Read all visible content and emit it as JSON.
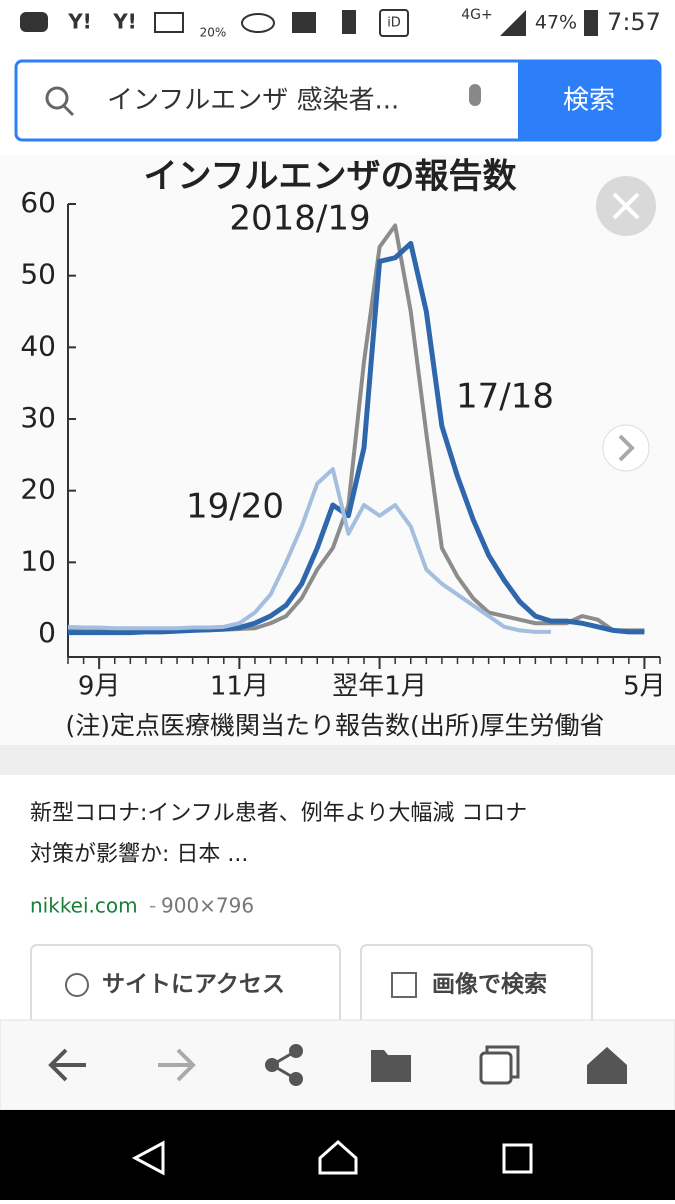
{
  "status_bar": {
    "icons": [
      "Y!",
      "Y!",
      "iD"
    ],
    "weather": "20%",
    "network": "4G+",
    "battery": "47%",
    "time": "7:57"
  },
  "search": {
    "query": "インフルエンザ 感染者...",
    "button": "検索"
  },
  "chart_data": {
    "type": "line",
    "title": "インフルエンザの報告数",
    "note": "(注)定点医療機関当たり報告数(出所)厚生労働省",
    "x": [
      0,
      1,
      2,
      3,
      4,
      5,
      6,
      7,
      8,
      9,
      10,
      11,
      12,
      13,
      14,
      15,
      16,
      17,
      18,
      19,
      20,
      21,
      22,
      23,
      24,
      25,
      26,
      27,
      28,
      29,
      30,
      31,
      32,
      33,
      34,
      35,
      36,
      37
    ],
    "xlim": [
      0,
      38
    ],
    "xticks": [
      {
        "value": 2,
        "label": "9月"
      },
      {
        "value": 11,
        "label": "11月"
      },
      {
        "value": 20,
        "label": "翌年1月"
      },
      {
        "value": 37,
        "label": "5月"
      }
    ],
    "ylim": [
      0,
      60
    ],
    "yticks": [
      0,
      10,
      20,
      30,
      40,
      50,
      60
    ],
    "series": [
      {
        "name": "2018/19",
        "color": "#8c8c8c",
        "values": [
          0.5,
          0.5,
          0.5,
          0.5,
          0.5,
          0.5,
          0.5,
          0.5,
          0.5,
          0.5,
          0.6,
          0.7,
          0.8,
          1.5,
          2.5,
          5,
          9,
          12,
          18,
          38,
          54,
          57,
          45,
          28,
          12,
          8,
          5,
          3,
          2.5,
          2,
          1.5,
          1.5,
          1.5,
          2.5,
          2,
          0.5,
          0.5,
          0.5
        ]
      },
      {
        "name": "17/18",
        "color": "#2f67ad",
        "values": [
          0.2,
          0.2,
          0.2,
          0.2,
          0.2,
          0.3,
          0.3,
          0.4,
          0.5,
          0.6,
          0.7,
          0.9,
          1.5,
          2.5,
          4,
          7,
          12,
          18,
          16.5,
          26,
          52,
          52.5,
          54.5,
          45,
          29,
          22,
          16,
          11,
          7.5,
          4.5,
          2.5,
          1.8,
          1.8,
          1.5,
          1,
          0.5,
          0.3,
          0.3
        ]
      },
      {
        "name": "19/20",
        "color": "#a3bedf",
        "values": [
          1,
          0.9,
          0.9,
          0.8,
          0.8,
          0.8,
          0.8,
          0.8,
          0.9,
          0.9,
          1,
          1.5,
          3,
          5.5,
          10,
          15,
          21,
          23,
          14,
          18,
          16.5,
          18,
          15,
          9,
          7,
          5.5,
          4,
          2.5,
          1,
          0.5,
          0.3,
          0.3,
          null,
          null,
          null,
          null,
          null,
          null
        ]
      }
    ]
  },
  "result": {
    "title_lines": [
      "新型コロナ:インフル患者、例年より大幅減 コロナ",
      "対策が影響か: 日本 ..."
    ],
    "source": "nikkei.com",
    "separator": "-",
    "size": "900×796"
  },
  "actions": [
    "サイトにアクセス",
    "画像で検索"
  ]
}
